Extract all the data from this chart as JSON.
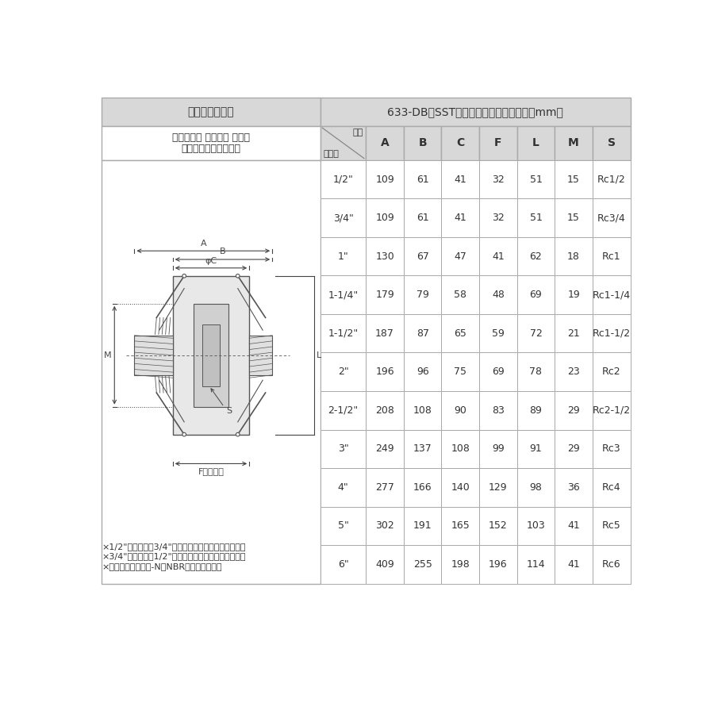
{
  "title_left": "カムアーム継手",
  "title_right": "633-DB　SST　サイズ別寸法表（単位：mm）",
  "subtitle_left1": "カムロック カプラー メネジ",
  "subtitle_left2": "ステンレススチール製",
  "col_header_diag_top": "位置",
  "col_header_diag_bottom": "サイズ",
  "columns": [
    "A",
    "B",
    "C",
    "F",
    "L",
    "M",
    "S"
  ],
  "rows": [
    {
      "size": "1/2\"",
      "A": "109",
      "B": "61",
      "C": "41",
      "F": "32",
      "L": "51",
      "M": "15",
      "S": "Rc1/2"
    },
    {
      "size": "3/4\"",
      "A": "109",
      "B": "61",
      "C": "41",
      "F": "32",
      "L": "51",
      "M": "15",
      "S": "Rc3/4"
    },
    {
      "size": "1\"",
      "A": "130",
      "B": "67",
      "C": "47",
      "F": "41",
      "L": "62",
      "M": "18",
      "S": "Rc1"
    },
    {
      "size": "1-1/4\"",
      "A": "179",
      "B": "79",
      "C": "58",
      "F": "48",
      "L": "69",
      "M": "19",
      "S": "Rc1-1/4"
    },
    {
      "size": "1-1/2\"",
      "A": "187",
      "B": "87",
      "C": "65",
      "F": "59",
      "L": "72",
      "M": "21",
      "S": "Rc1-1/2"
    },
    {
      "size": "2\"",
      "A": "196",
      "B": "96",
      "C": "75",
      "F": "69",
      "L": "78",
      "M": "23",
      "S": "Rc2"
    },
    {
      "size": "2-1/2\"",
      "A": "208",
      "B": "108",
      "C": "90",
      "F": "83",
      "L": "89",
      "M": "29",
      "S": "Rc2-1/2"
    },
    {
      "size": "3\"",
      "A": "249",
      "B": "137",
      "C": "108",
      "F": "99",
      "L": "91",
      "M": "29",
      "S": "Rc3"
    },
    {
      "size": "4\"",
      "A": "277",
      "B": "166",
      "C": "140",
      "F": "129",
      "L": "98",
      "M": "36",
      "S": "Rc4"
    },
    {
      "size": "5\"",
      "A": "302",
      "B": "191",
      "C": "165",
      "F": "152",
      "L": "103",
      "M": "41",
      "S": "Rc5"
    },
    {
      "size": "6\"",
      "A": "409",
      "B": "255",
      "C": "198",
      "F": "196",
      "L": "114",
      "M": "41",
      "S": "Rc6"
    }
  ],
  "footnotes": [
    "×1/2\"カプラーは3/4\"アダプターにも接続できます。",
    "×3/4\"カプラーは1/2\"アダプターにも接続できます。",
    "×ガスケットはブナ-N（NBR）を標準装備。"
  ],
  "bg_color": "#ffffff",
  "header_bg": "#d8d8d8",
  "cell_bg": "#ffffff",
  "border_color": "#aaaaaa",
  "text_color": "#333333",
  "diag_color": "#555555"
}
